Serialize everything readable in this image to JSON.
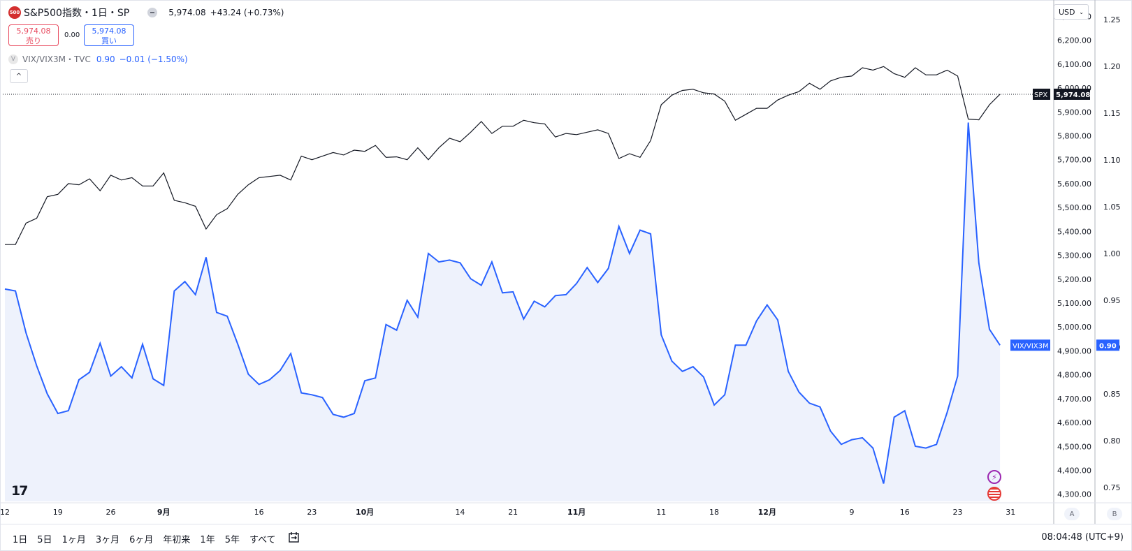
{
  "header": {
    "logo_text": "500",
    "title": "S&P500指数・1日・SP",
    "price": "5,974.08",
    "change": "+43.24 (+0.73%)"
  },
  "quote": {
    "sell_price": "5,974.08",
    "sell_label": "売り",
    "spread": "0.00",
    "buy_price": "5,974.08",
    "buy_label": "買い"
  },
  "compare": {
    "logo_text": "V",
    "name": "VIX/VIX3M・TVC",
    "value": "0.90",
    "change": "−0.01 (−1.50%)"
  },
  "currency": "USD",
  "axis_buttons": {
    "a": "A",
    "b": "B"
  },
  "bottom_bar": {
    "ranges": [
      "1日",
      "5日",
      "1ヶ月",
      "3ヶ月",
      "6ヶ月",
      "年初来",
      "1年",
      "5年",
      "すべて"
    ],
    "clock": "08:04:48 (UTC+9)"
  },
  "colors": {
    "spx_line": "#131722",
    "vix_line": "#2962ff",
    "vix_fill": "#eef2fc",
    "label_spx_bg": "#131722",
    "label_vix_bg": "#2962ff"
  },
  "chart_data": {
    "type": "line",
    "x_tick_labels": [
      "12",
      "19",
      "26",
      "9月",
      "16",
      "23",
      "10月",
      "14",
      "21",
      "11月",
      "11",
      "18",
      "12月",
      "9",
      "16",
      "23",
      "31"
    ],
    "series": [
      {
        "name": "SPX",
        "axis": "left",
        "values": [
          5345,
          5345,
          5435,
          5455,
          5545,
          5555,
          5600,
          5595,
          5620,
          5570,
          5635,
          5615,
          5625,
          5590,
          5590,
          5645,
          5530,
          5520,
          5505,
          5410,
          5470,
          5495,
          5555,
          5595,
          5625,
          5630,
          5635,
          5615,
          5715,
          5700,
          5715,
          5730,
          5720,
          5740,
          5735,
          5760,
          5710,
          5712,
          5700,
          5750,
          5700,
          5750,
          5790,
          5775,
          5815,
          5860,
          5810,
          5840,
          5840,
          5865,
          5855,
          5850,
          5795,
          5810,
          5805,
          5815,
          5825,
          5810,
          5705,
          5725,
          5710,
          5780,
          5930,
          5970,
          5990,
          5995,
          5980,
          5975,
          5945,
          5865,
          5890,
          5915,
          5915,
          5950,
          5970,
          5985,
          6020,
          5995,
          6030,
          6045,
          6050,
          6085,
          6075,
          6090,
          6060,
          6045,
          6085,
          6055,
          6055,
          6075,
          6050,
          5870,
          5867,
          5930,
          5974
        ]
      },
      {
        "name": "VIX/VIX3M",
        "axis": "right",
        "values": [
          0.962,
          0.96,
          0.915,
          0.88,
          0.85,
          0.829,
          0.832,
          0.865,
          0.873,
          0.904,
          0.869,
          0.879,
          0.867,
          0.903,
          0.866,
          0.859,
          0.96,
          0.97,
          0.956,
          0.996,
          0.937,
          0.933,
          0.903,
          0.871,
          0.86,
          0.865,
          0.875,
          0.893,
          0.851,
          0.849,
          0.846,
          0.828,
          0.825,
          0.829,
          0.864,
          0.867,
          0.924,
          0.918,
          0.95,
          0.932,
          1.0,
          0.991,
          0.993,
          0.99,
          0.973,
          0.966,
          0.991,
          0.958,
          0.959,
          0.93,
          0.949,
          0.943,
          0.955,
          0.956,
          0.968,
          0.985,
          0.969,
          0.984,
          1.029,
          1.0,
          1.025,
          1.021,
          0.913,
          0.885,
          0.874,
          0.879,
          0.868,
          0.838,
          0.849,
          0.902,
          0.902,
          0.928,
          0.945,
          0.929,
          0.874,
          0.852,
          0.84,
          0.836,
          0.81,
          0.796,
          0.801,
          0.803,
          0.792,
          0.754,
          0.825,
          0.832,
          0.794,
          0.792,
          0.796,
          0.83,
          0.869,
          1.14,
          0.99,
          0.919,
          0.902
        ]
      }
    ],
    "left_axis": {
      "ticks": [
        "6,300.00",
        "6,200.00",
        "6,100.00",
        "6,000.00",
        "5,900.00",
        "5,800.00",
        "5,700.00",
        "5,600.00",
        "5,500.00",
        "5,400.00",
        "5,300.00",
        "5,200.00",
        "5,100.00",
        "5,000.00",
        "4,900.00",
        "4,800.00",
        "4,700.00",
        "4,600.00",
        "4,500.00",
        "4,400.00",
        "4,300.00"
      ],
      "range": [
        4270,
        6345
      ]
    },
    "right_axis": {
      "ticks": [
        "1.25",
        "1.20",
        "1.15",
        "1.10",
        "1.05",
        "1.00",
        "0.95",
        "0.90",
        "0.85",
        "0.80",
        "0.75"
      ],
      "range": [
        0.735,
        1.265
      ]
    },
    "last_labels": {
      "spx_tag": "SPX",
      "spx_value": "5,974.08",
      "vix_tag": "VIX/VIX3M",
      "vix_value": "0.90"
    },
    "grid": false
  }
}
